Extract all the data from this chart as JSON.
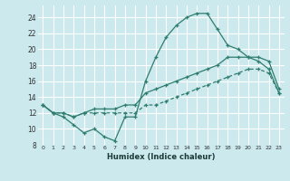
{
  "xlabel": "Humidex (Indice chaleur)",
  "xlim": [
    -0.5,
    23.5
  ],
  "ylim": [
    8,
    25.5
  ],
  "yticks": [
    8,
    10,
    12,
    14,
    16,
    18,
    20,
    22,
    24
  ],
  "xticks": [
    0,
    1,
    2,
    3,
    4,
    5,
    6,
    7,
    8,
    9,
    10,
    11,
    12,
    13,
    14,
    15,
    16,
    17,
    18,
    19,
    20,
    21,
    22,
    23
  ],
  "bg_color": "#cce9ee",
  "line_color": "#2e7d6e",
  "grid_color": "#ffffff",
  "line1_x": [
    0,
    1,
    2,
    3,
    4,
    5,
    6,
    7,
    8,
    9,
    10,
    11,
    12,
    13,
    14,
    15,
    16,
    17,
    18,
    19,
    20,
    21,
    22,
    23
  ],
  "line1_y": [
    13,
    12,
    11.5,
    10.5,
    9.5,
    10,
    9,
    8.5,
    11.5,
    11.5,
    16,
    19,
    21.5,
    23,
    24,
    24.5,
    24.5,
    22.5,
    20.5,
    20,
    19,
    18.5,
    17.5,
    14.5
  ],
  "line2_x": [
    0,
    1,
    2,
    3,
    4,
    5,
    6,
    7,
    8,
    9,
    10,
    11,
    12,
    13,
    14,
    15,
    16,
    17,
    18,
    19,
    20,
    21,
    22,
    23
  ],
  "line2_y": [
    13,
    12,
    12,
    11.5,
    12,
    12.5,
    12.5,
    12.5,
    13,
    13,
    14.5,
    15,
    15.5,
    16,
    16.5,
    17,
    17.5,
    18,
    19,
    19,
    19,
    19,
    18.5,
    15
  ],
  "line3_x": [
    0,
    1,
    2,
    3,
    4,
    5,
    6,
    7,
    8,
    9,
    10,
    11,
    12,
    13,
    14,
    15,
    16,
    17,
    18,
    19,
    20,
    21,
    22,
    23
  ],
  "line3_y": [
    13,
    12,
    12,
    11.5,
    12,
    12,
    12,
    12,
    12,
    12,
    13,
    13,
    13.5,
    14,
    14.5,
    15,
    15.5,
    16,
    16.5,
    17,
    17.5,
    17.5,
    17,
    14.5
  ]
}
